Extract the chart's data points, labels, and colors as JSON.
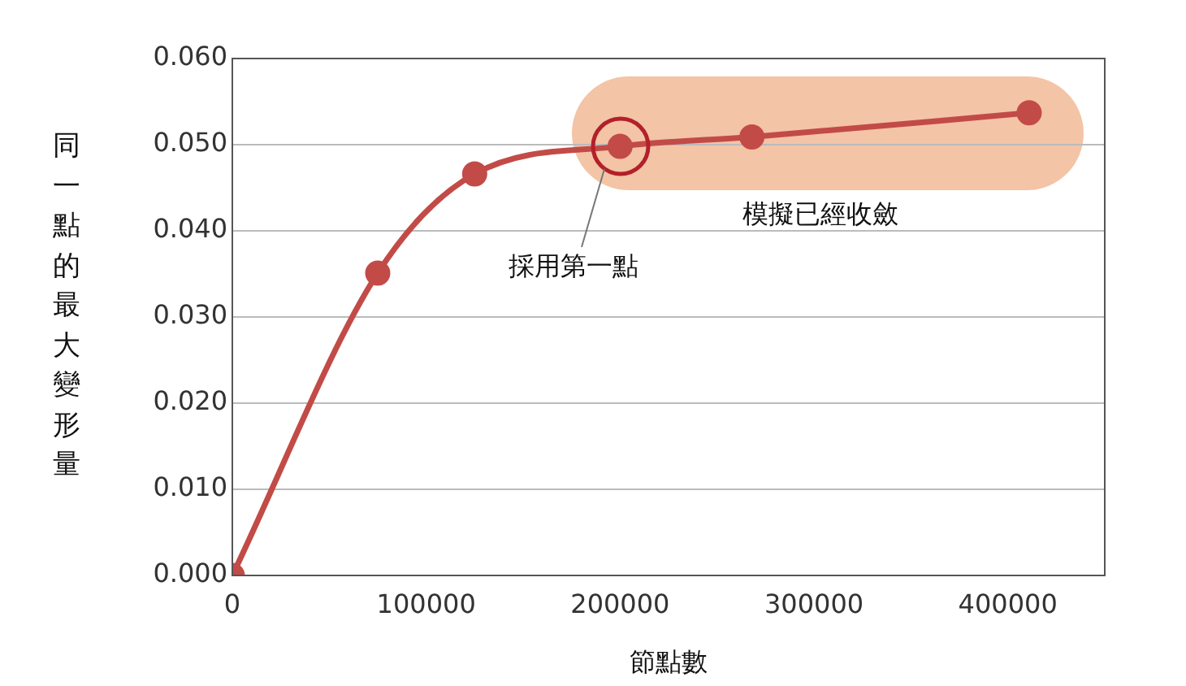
{
  "chart_data": {
    "type": "line",
    "xlabel": "節點數",
    "ylabel": "同一點的最大變形量",
    "x": [
      0,
      75000,
      125000,
      200000,
      268000,
      411000
    ],
    "series": [
      {
        "color": "#c24b47",
        "values": [
          0,
          0.0351,
          0.0466,
          0.0498,
          0.0509,
          0.0537
        ]
      }
    ],
    "xlim": [
      0,
      450000
    ],
    "xticks": [
      0,
      100000,
      200000,
      300000,
      400000
    ],
    "ylim": [
      0,
      0.06
    ],
    "yticks": [
      {
        "value": 0,
        "label": "0.000"
      },
      {
        "value": 0.01,
        "label": "0.010"
      },
      {
        "value": 0.02,
        "label": "0.020"
      },
      {
        "value": 0.03,
        "label": "0.030"
      },
      {
        "value": 0.04,
        "label": "0.040"
      },
      {
        "value": 0.05,
        "label": "0.050"
      },
      {
        "value": 0.06,
        "label": "0.060"
      }
    ],
    "grid": "y",
    "legend": false,
    "marker": "circle",
    "line_style": "solid",
    "annotations": [
      "採用第一點",
      "模擬已經收斂"
    ]
  }
}
